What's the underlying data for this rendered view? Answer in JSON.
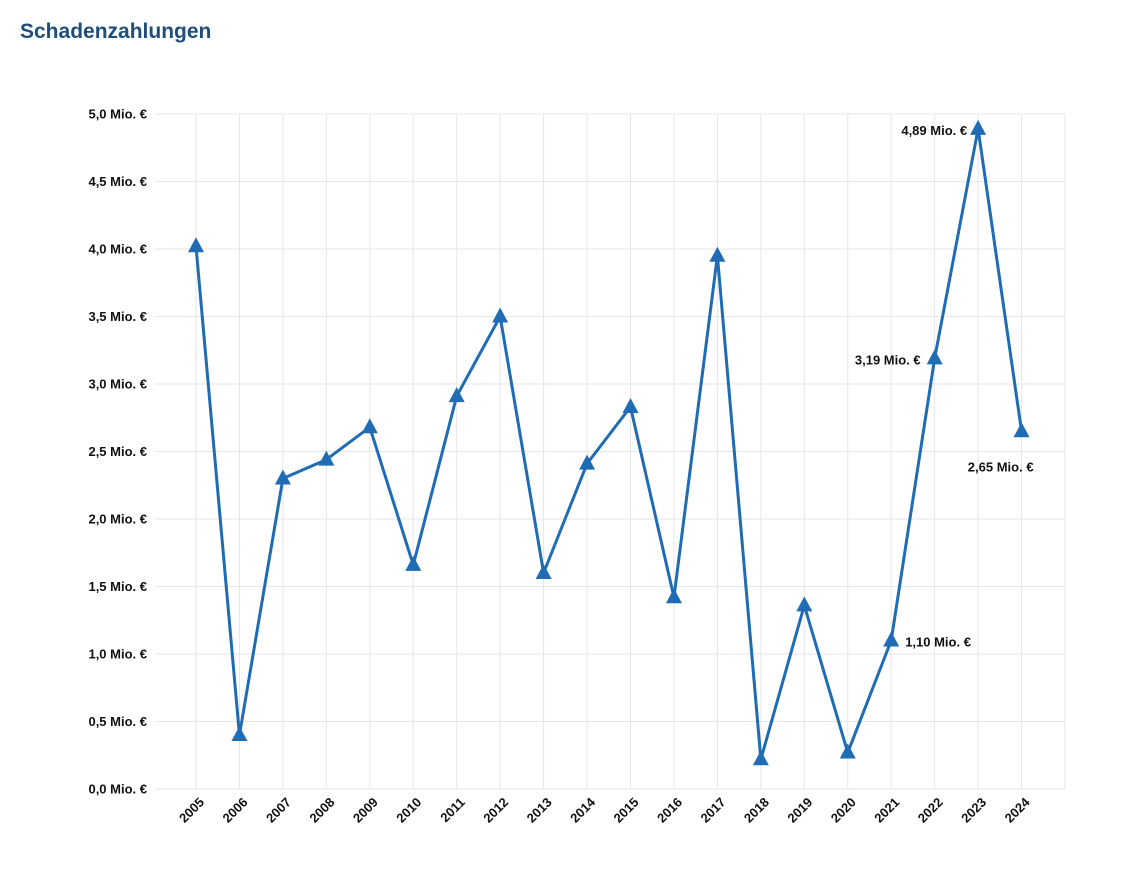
{
  "chart_data": {
    "type": "line",
    "title": "Schadenzahlungen",
    "xlabel": "",
    "ylabel": "",
    "x": [
      "2005",
      "2006",
      "2007",
      "2008",
      "2009",
      "2010",
      "2011",
      "2012",
      "2013",
      "2014",
      "2015",
      "2016",
      "2017",
      "2018",
      "2019",
      "2020",
      "2021",
      "2022",
      "2023",
      "2024"
    ],
    "series": [
      {
        "name": "",
        "values": [
          4.02,
          0.4,
          2.3,
          2.44,
          2.68,
          1.66,
          2.91,
          3.5,
          1.6,
          2.41,
          2.83,
          1.42,
          3.95,
          0.22,
          1.36,
          0.27,
          1.1,
          3.19,
          4.89,
          2.65
        ],
        "color": "#1f6cb4"
      }
    ],
    "ylim": [
      0,
      5
    ],
    "yticks": [
      "0,0 Mio. €",
      "0,5 Mio. €",
      "1,0 Mio. €",
      "1,5 Mio. €",
      "2,0 Mio. €",
      "2,5 Mio. €",
      "3,0 Mio. €",
      "3,5 Mio. €",
      "4,0 Mio. €",
      "4,5 Mio. €",
      "5,0 Mio. €"
    ],
    "annotations": [
      {
        "x": "2021",
        "text": "1,10 Mio. €"
      },
      {
        "x": "2022",
        "text": "3,19 Mio. €"
      },
      {
        "x": "2023",
        "text": "4,89 Mio. €"
      },
      {
        "x": "2024",
        "text": "2,65 Mio. €"
      }
    ],
    "grid": true,
    "marker": "triangle"
  }
}
